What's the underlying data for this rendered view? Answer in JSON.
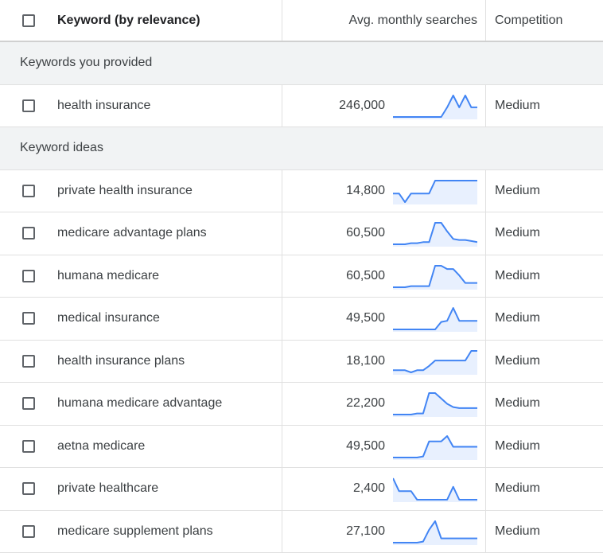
{
  "header": {
    "keyword": "Keyword (by relevance)",
    "avg": "Avg. monthly searches",
    "competition": "Competition"
  },
  "groups": {
    "provided": "Keywords you provided",
    "ideas": "Keyword ideas"
  },
  "provided": [
    {
      "keyword": "health insurance",
      "searches": "246,000",
      "competition": "Medium",
      "trend": [
        0,
        0,
        0,
        0,
        0,
        0,
        0,
        0,
        0,
        45,
        100,
        45,
        100,
        45,
        45
      ]
    }
  ],
  "ideas": [
    {
      "keyword": "private health insurance",
      "searches": "14,800",
      "competition": "Medium",
      "trend": [
        40,
        40,
        0,
        40,
        40,
        40,
        40,
        100,
        100,
        100,
        100,
        100,
        100,
        100,
        100
      ]
    },
    {
      "keyword": "medicare advantage plans",
      "searches": "60,500",
      "competition": "Medium",
      "trend": [
        0,
        0,
        0,
        5,
        5,
        10,
        10,
        100,
        100,
        60,
        25,
        20,
        20,
        15,
        10
      ]
    },
    {
      "keyword": "humana medicare",
      "searches": "60,500",
      "competition": "Medium",
      "trend": [
        0,
        0,
        0,
        5,
        5,
        5,
        5,
        100,
        100,
        85,
        85,
        55,
        20,
        20,
        20
      ]
    },
    {
      "keyword": "medical insurance",
      "searches": "49,500",
      "competition": "Medium",
      "trend": [
        0,
        0,
        0,
        0,
        0,
        0,
        0,
        0,
        35,
        40,
        100,
        40,
        40,
        40,
        40
      ]
    },
    {
      "keyword": "health insurance plans",
      "searches": "18,100",
      "competition": "Medium",
      "trend": [
        10,
        10,
        10,
        0,
        10,
        10,
        30,
        55,
        55,
        55,
        55,
        55,
        55,
        100,
        100
      ]
    },
    {
      "keyword": "humana medicare advantage",
      "searches": "22,200",
      "competition": "Medium",
      "trend": [
        0,
        0,
        0,
        0,
        5,
        5,
        100,
        100,
        75,
        50,
        35,
        30,
        30,
        30,
        30
      ]
    },
    {
      "keyword": "aetna medicare",
      "searches": "49,500",
      "competition": "Medium",
      "trend": [
        0,
        0,
        0,
        0,
        0,
        5,
        75,
        75,
        75,
        100,
        50,
        50,
        50,
        50,
        50
      ]
    },
    {
      "keyword": "private healthcare",
      "searches": "2,400",
      "competition": "Medium",
      "trend": [
        100,
        40,
        40,
        40,
        0,
        0,
        0,
        0,
        0,
        0,
        60,
        0,
        0,
        0,
        0
      ]
    },
    {
      "keyword": "medicare supplement plans",
      "searches": "27,100",
      "competition": "Medium",
      "trend": [
        0,
        0,
        0,
        0,
        0,
        5,
        60,
        100,
        20,
        20,
        20,
        20,
        20,
        20,
        20
      ]
    }
  ],
  "colors": {
    "sparkline": "#4285f4",
    "sparkfill": "#e8f0fe"
  }
}
